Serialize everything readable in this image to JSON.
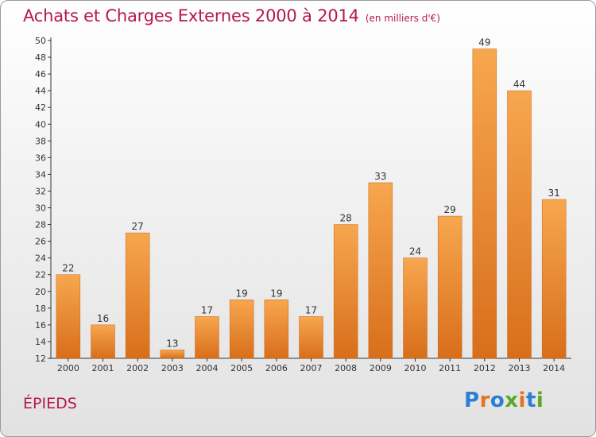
{
  "header": {
    "title": "Achats et Charges Externes 2000 à 2014",
    "subtitle": "(en milliers d'€)"
  },
  "footer": {
    "commune": "ÉPIEDS",
    "logo_text": "Proxiti"
  },
  "colors": {
    "title": "#b5174f",
    "bar_light": "#f7a74f",
    "bar_dark": "#d86e1a",
    "axis": "#333333",
    "logo": [
      "#2a7fd4",
      "#e8731a",
      "#2a7fd4",
      "#5aa82a",
      "#e8731a",
      "#2a7fd4",
      "#5aa82a"
    ]
  },
  "chart_data": {
    "type": "bar",
    "title": "Achats et Charges Externes 2000 à 2014",
    "subtitle": "(en milliers d'€)",
    "categories": [
      "2000",
      "2001",
      "2002",
      "2003",
      "2004",
      "2005",
      "2006",
      "2007",
      "2008",
      "2009",
      "2010",
      "2011",
      "2012",
      "2013",
      "2014"
    ],
    "values": [
      22,
      16,
      27,
      13,
      17,
      19,
      19,
      17,
      28,
      33,
      24,
      29,
      49,
      44,
      31
    ],
    "ylim": [
      12,
      50
    ],
    "yticks": [
      12,
      14,
      16,
      18,
      20,
      22,
      24,
      26,
      28,
      30,
      32,
      34,
      36,
      38,
      40,
      42,
      44,
      46,
      48,
      50
    ],
    "xlabel": "",
    "ylabel": "",
    "grid": false,
    "legend": "none"
  }
}
